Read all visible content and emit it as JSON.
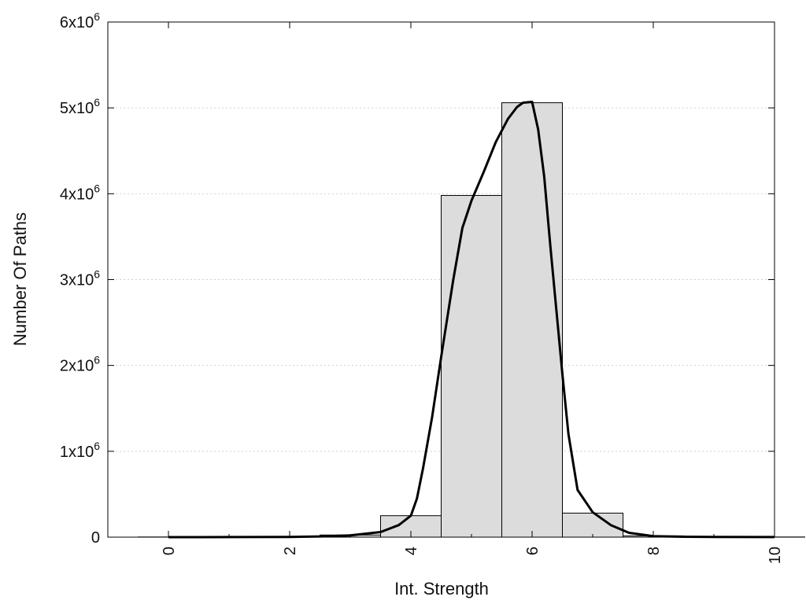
{
  "chart_data": {
    "type": "bar",
    "xlabel": "Int. Strength",
    "ylabel": "Number Of Paths",
    "xlim": [
      -1,
      10
    ],
    "ylim": [
      0,
      6000000
    ],
    "grid": true,
    "xticks": [
      {
        "value": 0,
        "label": "0"
      },
      {
        "value": 2,
        "label": "2"
      },
      {
        "value": 4,
        "label": "4"
      },
      {
        "value": 6,
        "label": "6"
      },
      {
        "value": 8,
        "label": "8"
      },
      {
        "value": 10,
        "label": "10"
      }
    ],
    "yticks": [
      {
        "value": 0,
        "base": "0",
        "exp": ""
      },
      {
        "value": 1000000,
        "base": "1x10",
        "exp": "6"
      },
      {
        "value": 2000000,
        "base": "2x10",
        "exp": "6"
      },
      {
        "value": 3000000,
        "base": "3x10",
        "exp": "6"
      },
      {
        "value": 4000000,
        "base": "4x10",
        "exp": "6"
      },
      {
        "value": 5000000,
        "base": "5x10",
        "exp": "6"
      },
      {
        "value": 6000000,
        "base": "6x10",
        "exp": "6"
      }
    ],
    "bars": [
      {
        "x": 0,
        "value": 2000
      },
      {
        "x": 1,
        "value": 4000
      },
      {
        "x": 2,
        "value": 8000
      },
      {
        "x": 3,
        "value": 25000
      },
      {
        "x": 4,
        "value": 250000
      },
      {
        "x": 5,
        "value": 3980000
      },
      {
        "x": 6,
        "value": 5060000
      },
      {
        "x": 7,
        "value": 280000
      },
      {
        "x": 8,
        "value": 15000
      },
      {
        "x": 9,
        "value": 5000
      },
      {
        "x": 10,
        "value": 2000
      }
    ],
    "series": [
      {
        "type": "line",
        "points": [
          [
            0,
            0
          ],
          [
            1,
            1000
          ],
          [
            2,
            3000
          ],
          [
            2.5,
            8000
          ],
          [
            3,
            20000
          ],
          [
            3.5,
            60000
          ],
          [
            3.8,
            140000
          ],
          [
            4,
            250000
          ],
          [
            4.1,
            450000
          ],
          [
            4.2,
            800000
          ],
          [
            4.35,
            1400000
          ],
          [
            4.5,
            2100000
          ],
          [
            4.7,
            3000000
          ],
          [
            4.85,
            3600000
          ],
          [
            5,
            3920000
          ],
          [
            5.2,
            4250000
          ],
          [
            5.4,
            4600000
          ],
          [
            5.6,
            4870000
          ],
          [
            5.75,
            5010000
          ],
          [
            5.85,
            5060000
          ],
          [
            6,
            5070000
          ],
          [
            6.1,
            4750000
          ],
          [
            6.2,
            4200000
          ],
          [
            6.3,
            3400000
          ],
          [
            6.5,
            1900000
          ],
          [
            6.6,
            1200000
          ],
          [
            6.75,
            550000
          ],
          [
            7,
            290000
          ],
          [
            7.3,
            140000
          ],
          [
            7.6,
            50000
          ],
          [
            8,
            12000
          ],
          [
            8.5,
            5000
          ],
          [
            9,
            3000
          ],
          [
            10,
            1000
          ]
        ]
      }
    ]
  }
}
